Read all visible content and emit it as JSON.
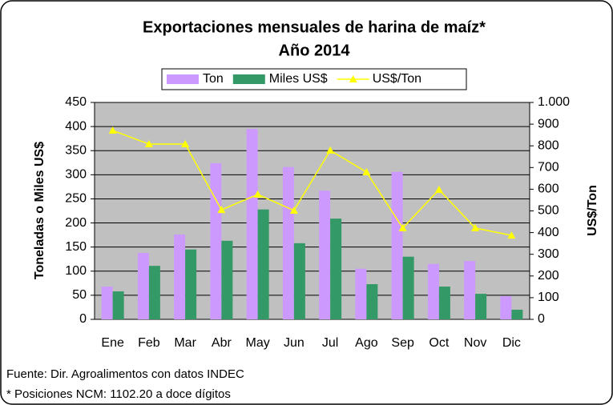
{
  "chart_data": {
    "type": "bar-line",
    "title": "Exportaciones mensuales de harina de maíz*",
    "subtitle": "Año 2014",
    "categories": [
      "Ene",
      "Feb",
      "Mar",
      "Abr",
      "May",
      "Jun",
      "Jul",
      "Ago",
      "Sep",
      "Oct",
      "Nov",
      "Dic"
    ],
    "series": [
      {
        "name": "Ton",
        "type": "bar",
        "color": "#cc99ff",
        "values": [
          68,
          138,
          176,
          324,
          395,
          316,
          267,
          105,
          306,
          115,
          121,
          48
        ]
      },
      {
        "name": "Miles US$",
        "type": "bar",
        "color": "#339966",
        "values": [
          58,
          111,
          145,
          163,
          228,
          158,
          209,
          73,
          130,
          68,
          53,
          20
        ]
      },
      {
        "name": "US$/Ton",
        "type": "line",
        "axis": "y2",
        "color": "#ffff00",
        "values": [
          871,
          808,
          808,
          505,
          576,
          502,
          779,
          679,
          421,
          598,
          421,
          387
        ]
      }
    ],
    "ylabel": "Toneladas o Miles US$",
    "y2label": "US$/Ton",
    "ylim": [
      0,
      450
    ],
    "yticks": [
      0,
      50,
      100,
      150,
      200,
      250,
      300,
      350,
      400,
      450
    ],
    "y2lim": [
      0,
      1000
    ],
    "y2ticks": [
      0,
      100,
      200,
      300,
      400,
      500,
      600,
      700,
      800,
      900,
      {
        "value": 1000,
        "label": "1.000"
      }
    ],
    "grid": true,
    "legend": "top",
    "notes": [
      "Fuente: Dir. Agroalimentos con datos INDEC",
      "* Posiciones NCM: 1102.20 a doce dígitos"
    ]
  }
}
